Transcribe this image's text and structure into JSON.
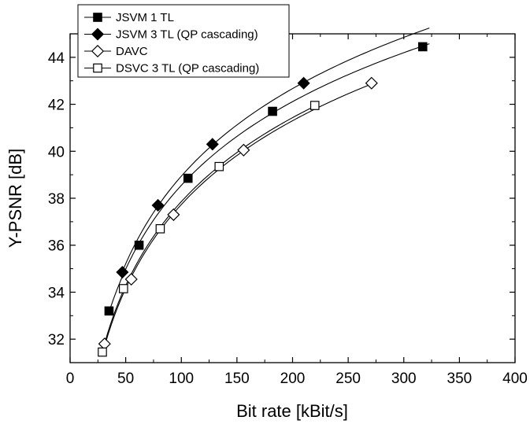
{
  "chart_data": {
    "type": "line",
    "title": "",
    "xlabel": "Bit rate [kBit/s]",
    "ylabel": "Y-PSNR [dB]",
    "xlim": [
      0,
      400
    ],
    "ylim": [
      31,
      45
    ],
    "xticks": [
      0,
      50,
      100,
      150,
      200,
      250,
      300,
      350,
      400
    ],
    "yticks": [
      32,
      34,
      36,
      38,
      40,
      42,
      44
    ],
    "grid": false,
    "legend_position": "top-left",
    "series": [
      {
        "name": "JSVM 1 TL",
        "marker": "filled-square",
        "x": [
          35,
          62,
          106,
          182,
          317
        ],
        "y": [
          33.2,
          36.0,
          38.85,
          41.7,
          44.45
        ],
        "fit_end_x": 323
      },
      {
        "name": "JSVM 3 TL (QP cascading)",
        "marker": "filled-diamond",
        "x": [
          47,
          79,
          128,
          210
        ],
        "y": [
          34.85,
          37.7,
          40.3,
          42.9
        ],
        "fit_end_x": 323
      },
      {
        "name": "DAVC",
        "marker": "open-diamond",
        "x": [
          31,
          55,
          93,
          156,
          271
        ],
        "y": [
          31.8,
          34.55,
          37.3,
          40.05,
          42.9
        ]
      },
      {
        "name": "DSVC 3 TL (QP cascading)",
        "marker": "open-square",
        "x": [
          29,
          48,
          81,
          134,
          220
        ],
        "y": [
          31.45,
          34.15,
          36.7,
          39.35,
          41.95
        ]
      }
    ]
  }
}
